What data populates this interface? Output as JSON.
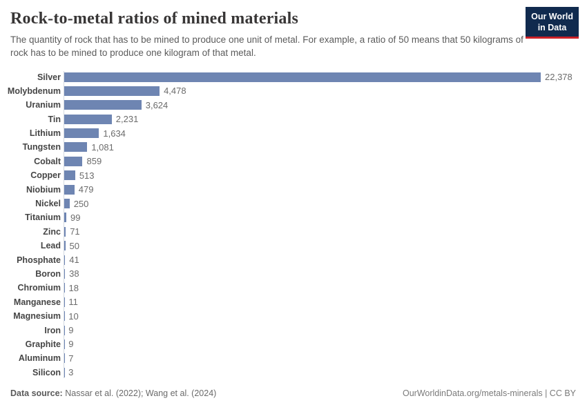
{
  "header": {
    "title": "Rock-to-metal ratios of mined materials",
    "subtitle": "The quantity of rock that has to be mined to produce one unit of metal. For example, a ratio of 50 means that 50 kilograms of rock has to be mined to produce one kilogram of that metal.",
    "logo": {
      "line1": "Our World",
      "line2": "in Data",
      "bg_color": "#102a4e",
      "accent_color": "#cb2027"
    }
  },
  "chart_data": {
    "type": "bar",
    "orientation": "horizontal",
    "title": "Rock-to-metal ratios of mined materials",
    "xlabel": "",
    "ylabel": "",
    "xlim": [
      0,
      22378
    ],
    "grid": false,
    "legend": false,
    "bar_color": "#6e85b2",
    "categories": [
      "Silver",
      "Molybdenum",
      "Uranium",
      "Tin",
      "Lithium",
      "Tungsten",
      "Cobalt",
      "Copper",
      "Niobium",
      "Nickel",
      "Titanium",
      "Zinc",
      "Lead",
      "Phosphate",
      "Boron",
      "Chromium",
      "Manganese",
      "Magnesium",
      "Iron",
      "Graphite",
      "Aluminum",
      "Silicon"
    ],
    "values": [
      22378,
      4478,
      3624,
      2231,
      1634,
      1081,
      859,
      513,
      479,
      250,
      99,
      71,
      50,
      41,
      38,
      18,
      11,
      10,
      9,
      9,
      7,
      3
    ],
    "value_labels": [
      "22,378",
      "4,478",
      "3,624",
      "2,231",
      "1,634",
      "1,081",
      "859",
      "513",
      "479",
      "250",
      "99",
      "71",
      "50",
      "41",
      "38",
      "18",
      "11",
      "10",
      "9",
      "9",
      "7",
      "3"
    ]
  },
  "footer": {
    "source_label": "Data source:",
    "source_text": "Nassar et al. (2022); Wang et al. (2024)",
    "right_text": "OurWorldinData.org/metals-minerals | CC BY"
  }
}
